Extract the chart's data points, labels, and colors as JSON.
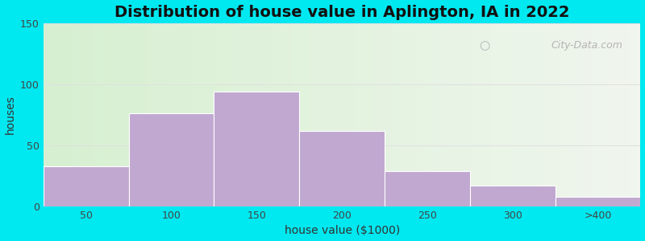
{
  "title": "Distribution of house value in Aplington, IA in 2022",
  "xlabel": "house value ($1000)",
  "ylabel": "houses",
  "categories": [
    "50",
    "100",
    "150",
    "200",
    "250",
    "300",
    ">400"
  ],
  "values": [
    33,
    76,
    94,
    62,
    29,
    17,
    8
  ],
  "bar_color": "#c0a8d0",
  "bar_edgecolor": "#ffffff",
  "ylim": [
    0,
    150
  ],
  "yticks": [
    0,
    50,
    100,
    150
  ],
  "bg_outer": "#00e8f0",
  "bg_inner_left": "#d6efd0",
  "bg_inner_right": "#f0f5ee",
  "watermark": "City-Data.com",
  "title_fontsize": 14,
  "axis_label_fontsize": 10,
  "tick_fontsize": 9
}
